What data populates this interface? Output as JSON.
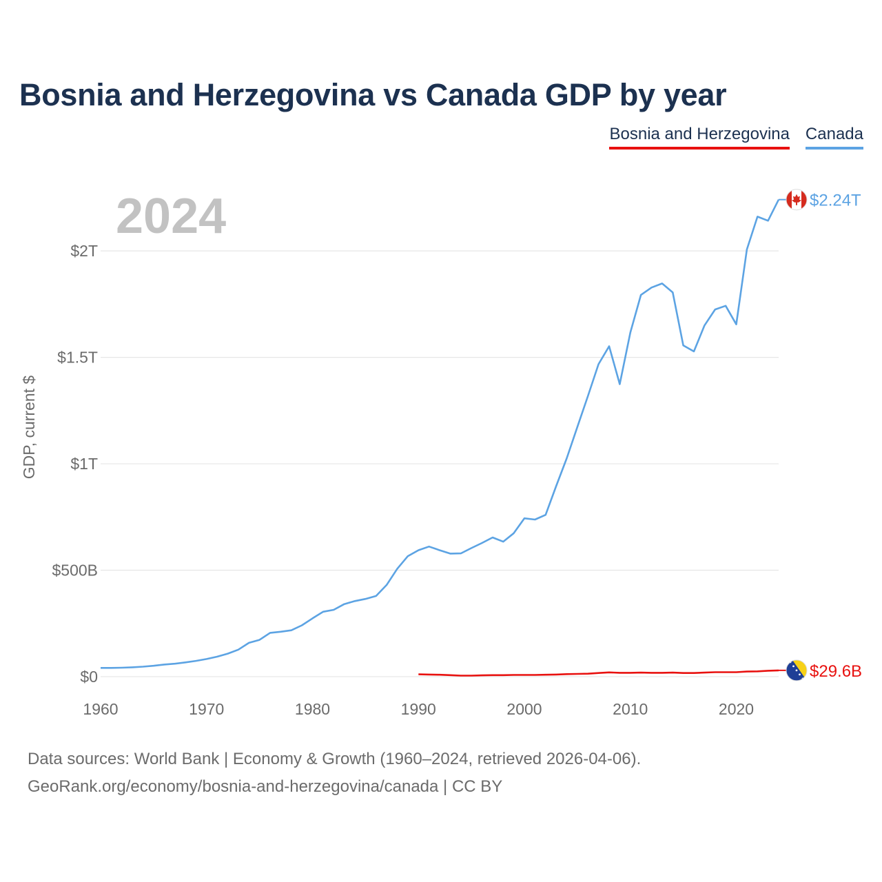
{
  "title": "Bosnia and Herzegovina vs Canada GDP by year",
  "legend": [
    {
      "name": "Bosnia and Herzegovina",
      "color": "#e8110f"
    },
    {
      "name": "Canada",
      "color": "#5ca3e3"
    }
  ],
  "year_label": "2024",
  "footer": {
    "line1": "Data sources: World Bank | Economy & Growth (1960–2024, retrieved 2026-04-06).",
    "line2": "GeoRank.org/economy/bosnia-and-herzegovina/canada | CC BY"
  },
  "chart_data": {
    "type": "line",
    "title": "Bosnia and Herzegovina vs Canada GDP by year",
    "xlabel": "",
    "ylabel": "GDP, current $",
    "xlim": [
      1960,
      2024
    ],
    "ylim": [
      0,
      2240
    ],
    "value_units": "billions of current US$",
    "grid": true,
    "x_ticks": [
      1960,
      1970,
      1980,
      1990,
      2000,
      2010,
      2020
    ],
    "x_tick_labels": [
      "1960",
      "1970",
      "1980",
      "1990",
      "2000",
      "2010",
      "2020"
    ],
    "y_ticks": [
      0,
      500,
      1000,
      1500,
      2000
    ],
    "y_tick_labels": [
      "$0",
      "$500B",
      "$1T",
      "$1.5T",
      "$2T"
    ],
    "legend_position": "top-right",
    "series": [
      {
        "name": "Canada",
        "color": "#5ca3e3",
        "end_label": "$2.24T",
        "flag": "canada-flag-icon",
        "x": [
          1960,
          1961,
          1962,
          1963,
          1964,
          1965,
          1966,
          1967,
          1968,
          1969,
          1970,
          1971,
          1972,
          1973,
          1974,
          1975,
          1976,
          1977,
          1978,
          1979,
          1980,
          1981,
          1982,
          1983,
          1984,
          1985,
          1986,
          1987,
          1988,
          1989,
          1990,
          1991,
          1992,
          1993,
          1994,
          1995,
          1996,
          1997,
          1998,
          1999,
          2000,
          2001,
          2002,
          2003,
          2004,
          2005,
          2006,
          2007,
          2008,
          2009,
          2010,
          2011,
          2012,
          2013,
          2014,
          2015,
          2016,
          2017,
          2018,
          2019,
          2020,
          2021,
          2022,
          2023,
          2024
        ],
        "values": [
          41,
          41,
          42,
          44,
          47,
          51,
          57,
          61,
          67,
          74,
          83,
          94,
          108,
          127,
          159,
          173,
          206,
          211,
          218,
          241,
          274,
          305,
          314,
          341,
          355,
          365,
          379,
          431,
          507,
          566,
          594,
          611,
          594,
          578,
          579,
          604,
          628,
          654,
          634,
          674,
          744,
          738,
          760,
          895,
          1026,
          1173,
          1319,
          1468,
          1552,
          1374,
          1617,
          1793,
          1828,
          1847,
          1805,
          1556,
          1528,
          1650,
          1725,
          1742,
          1655,
          2007,
          2161,
          2142,
          2241
        ]
      },
      {
        "name": "Bosnia and Herzegovina",
        "color": "#e8110f",
        "end_label": "$29.6B",
        "flag": "bosnia-flag-icon",
        "x": [
          1990,
          1991,
          1992,
          1993,
          1994,
          1995,
          1996,
          1997,
          1998,
          1999,
          2000,
          2001,
          2002,
          2003,
          2004,
          2005,
          2006,
          2007,
          2008,
          2009,
          2010,
          2011,
          2012,
          2013,
          2014,
          2015,
          2016,
          2017,
          2018,
          2019,
          2020,
          2021,
          2022,
          2023,
          2024
        ],
        "values": [
          11,
          10,
          9,
          7,
          5,
          5,
          6,
          7,
          7,
          8,
          8,
          8,
          9,
          10,
          12,
          13,
          14,
          17,
          20,
          18,
          18,
          19,
          18,
          18,
          19,
          17,
          17,
          19,
          21,
          21,
          21,
          24,
          25,
          28,
          29.6
        ]
      }
    ]
  }
}
